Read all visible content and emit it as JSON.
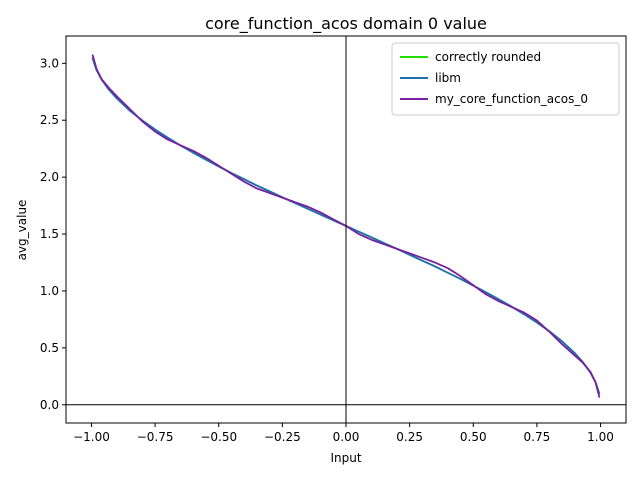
{
  "chart_data": {
    "type": "line",
    "title": "core_function_acos domain 0 value",
    "xlabel": "Input",
    "ylabel": "avg_value",
    "xlim": [
      -1.1,
      1.1
    ],
    "ylim": [
      -0.16,
      3.24
    ],
    "xticks": [
      -1.0,
      -0.75,
      -0.5,
      -0.25,
      0.0,
      0.25,
      0.5,
      0.75,
      1.0
    ],
    "xtick_labels": [
      "−1.00",
      "−0.75",
      "−0.50",
      "−0.25",
      "0.00",
      "0.25",
      "0.50",
      "0.75",
      "1.00"
    ],
    "yticks": [
      0.0,
      0.5,
      1.0,
      1.5,
      2.0,
      2.5,
      3.0
    ],
    "ytick_labels": [
      "0.0",
      "0.5",
      "1.0",
      "1.5",
      "2.0",
      "2.5",
      "3.0"
    ],
    "grid": false,
    "zero_lines": true,
    "legend_position": "upper right",
    "series": [
      {
        "name": "correctly rounded",
        "color": "#22dd00",
        "x": [
          -0.995,
          -0.98,
          -0.96,
          -0.93,
          -0.9,
          -0.85,
          -0.8,
          -0.75,
          -0.7,
          -0.65,
          -0.6,
          -0.55,
          -0.5,
          -0.45,
          -0.4,
          -0.35,
          -0.3,
          -0.25,
          -0.2,
          -0.15,
          -0.1,
          -0.05,
          0.0,
          0.05,
          0.1,
          0.15,
          0.2,
          0.25,
          0.3,
          0.35,
          0.4,
          0.45,
          0.5,
          0.55,
          0.6,
          0.65,
          0.7,
          0.75,
          0.8,
          0.85,
          0.9,
          0.93,
          0.96,
          0.98,
          0.995
        ],
        "y": [
          3.042,
          2.941,
          2.857,
          2.765,
          2.691,
          2.585,
          2.498,
          2.419,
          2.346,
          2.278,
          2.214,
          2.153,
          2.094,
          2.036,
          1.982,
          1.926,
          1.875,
          1.823,
          1.772,
          1.722,
          1.671,
          1.621,
          1.571,
          1.521,
          1.471,
          1.42,
          1.37,
          1.318,
          1.266,
          1.215,
          1.16,
          1.106,
          1.047,
          0.988,
          0.927,
          0.863,
          0.795,
          0.723,
          0.644,
          0.555,
          0.451,
          0.376,
          0.284,
          0.2,
          0.1
        ]
      },
      {
        "name": "libm",
        "color": "#1f6fb0",
        "x": [
          -0.995,
          -0.98,
          -0.96,
          -0.93,
          -0.9,
          -0.85,
          -0.8,
          -0.75,
          -0.7,
          -0.65,
          -0.6,
          -0.55,
          -0.5,
          -0.45,
          -0.4,
          -0.35,
          -0.3,
          -0.25,
          -0.2,
          -0.15,
          -0.1,
          -0.05,
          0.0,
          0.05,
          0.1,
          0.15,
          0.2,
          0.25,
          0.3,
          0.35,
          0.4,
          0.45,
          0.5,
          0.55,
          0.6,
          0.65,
          0.7,
          0.75,
          0.8,
          0.85,
          0.9,
          0.93,
          0.96,
          0.98,
          0.995
        ],
        "y": [
          3.042,
          2.941,
          2.857,
          2.765,
          2.691,
          2.585,
          2.498,
          2.419,
          2.346,
          2.278,
          2.214,
          2.153,
          2.094,
          2.036,
          1.982,
          1.926,
          1.875,
          1.823,
          1.772,
          1.722,
          1.671,
          1.621,
          1.571,
          1.521,
          1.471,
          1.42,
          1.37,
          1.318,
          1.266,
          1.215,
          1.16,
          1.106,
          1.047,
          0.988,
          0.927,
          0.863,
          0.795,
          0.723,
          0.644,
          0.555,
          0.451,
          0.376,
          0.284,
          0.2,
          0.1
        ]
      },
      {
        "name": "my_core_function_acos_0",
        "color": "#7a1fa2",
        "x": [
          -0.995,
          -0.98,
          -0.96,
          -0.93,
          -0.9,
          -0.85,
          -0.8,
          -0.75,
          -0.7,
          -0.65,
          -0.6,
          -0.55,
          -0.5,
          -0.45,
          -0.4,
          -0.35,
          -0.3,
          -0.25,
          -0.2,
          -0.15,
          -0.1,
          -0.05,
          0.0,
          0.05,
          0.1,
          0.15,
          0.2,
          0.25,
          0.3,
          0.35,
          0.4,
          0.45,
          0.5,
          0.55,
          0.6,
          0.65,
          0.7,
          0.75,
          0.8,
          0.85,
          0.9,
          0.93,
          0.96,
          0.98,
          0.995
        ],
        "y": [
          3.07,
          2.95,
          2.86,
          2.78,
          2.71,
          2.6,
          2.49,
          2.4,
          2.33,
          2.28,
          2.23,
          2.17,
          2.1,
          2.03,
          1.96,
          1.9,
          1.86,
          1.82,
          1.78,
          1.74,
          1.69,
          1.63,
          1.571,
          1.5,
          1.45,
          1.41,
          1.37,
          1.33,
          1.29,
          1.25,
          1.2,
          1.13,
          1.05,
          0.97,
          0.91,
          0.86,
          0.81,
          0.74,
          0.64,
          0.53,
          0.43,
          0.37,
          0.29,
          0.2,
          0.07
        ]
      }
    ]
  }
}
